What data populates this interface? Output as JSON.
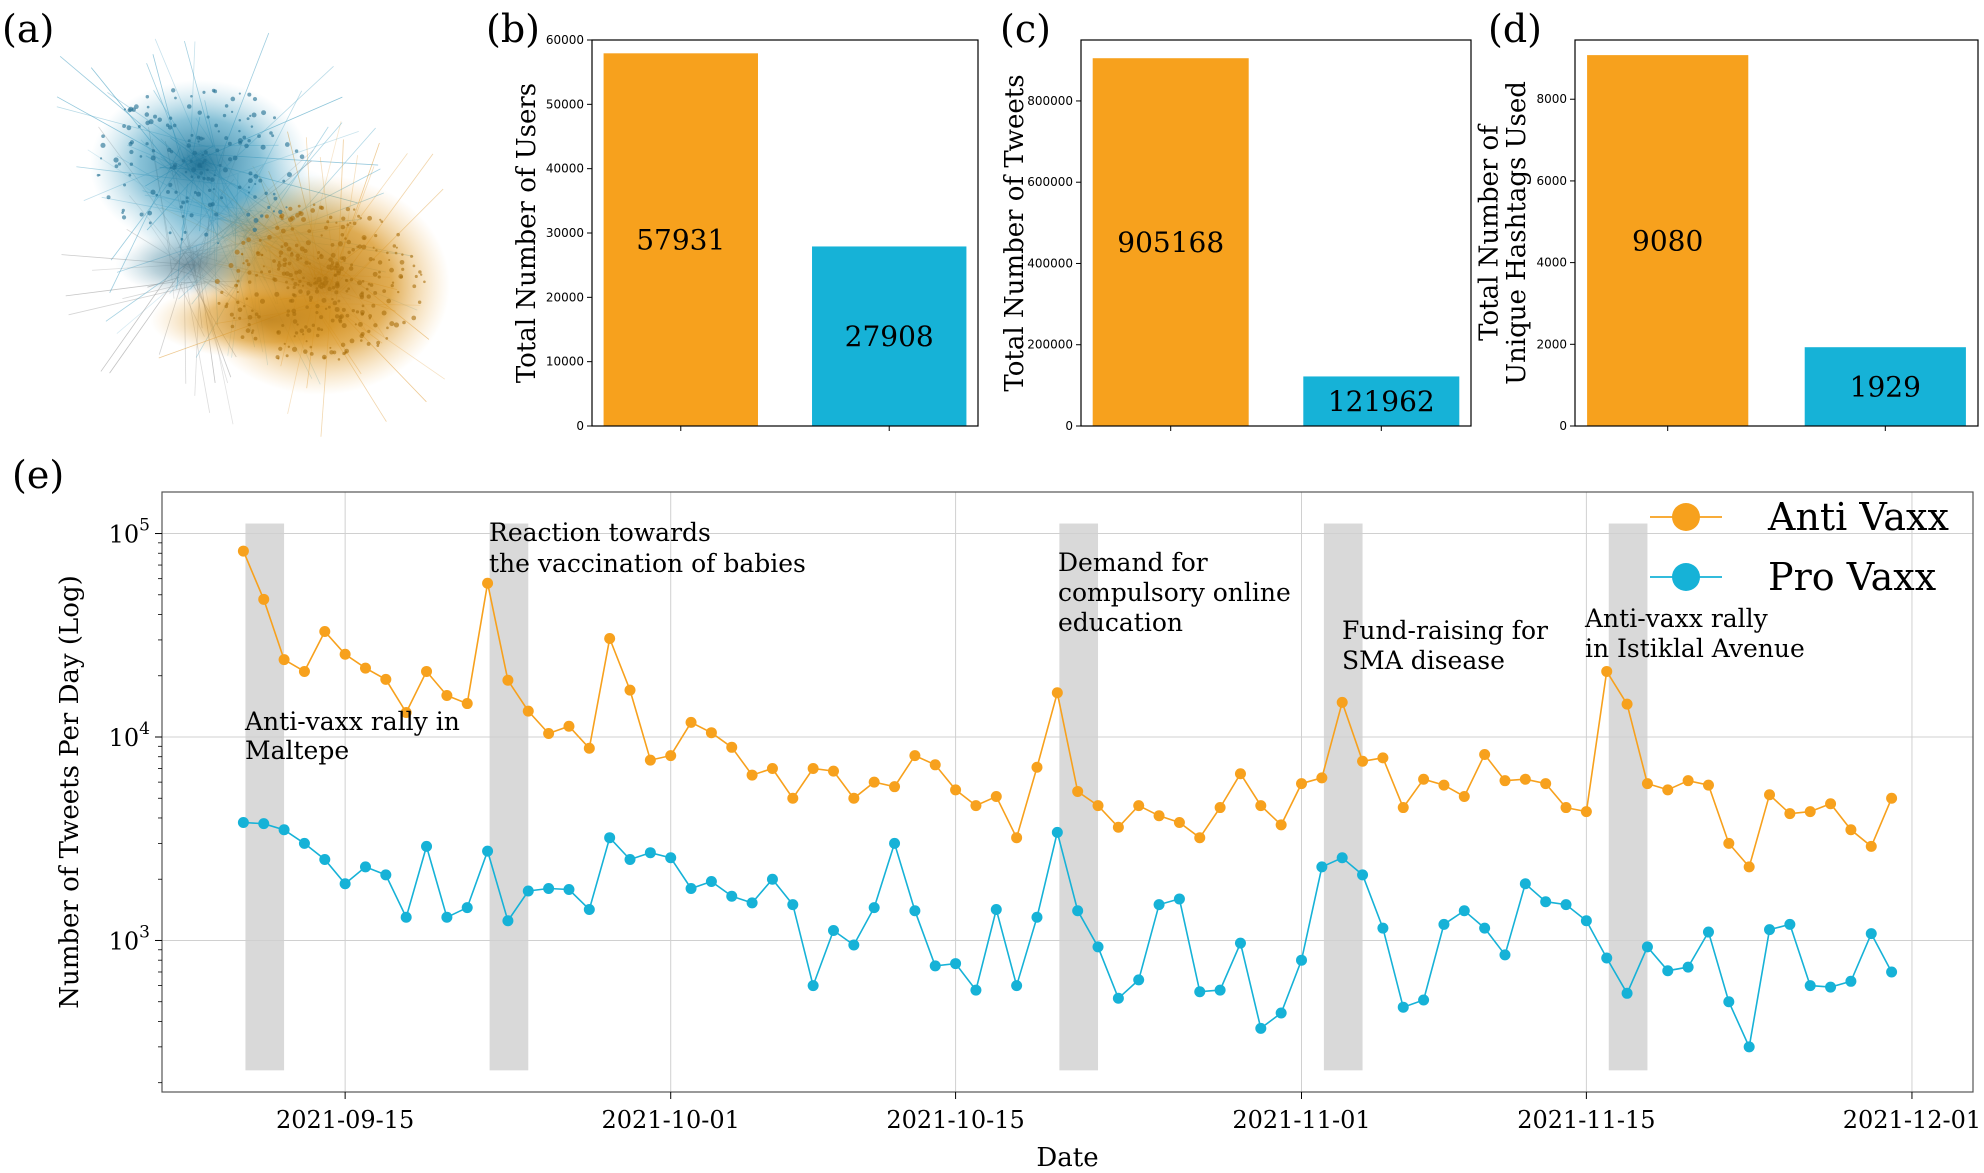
{
  "panel_labels": [
    "(a)",
    "(b)",
    "(c)",
    "(d)",
    "(e)"
  ],
  "colors": {
    "anti": "#f7a11d",
    "pro": "#16b2d7",
    "highlight": "#d9d9d9",
    "grid": "#d0d0d0"
  },
  "chart_data": [
    {
      "panel": "(b)",
      "type": "bar",
      "ylabel": "Total Number of Users",
      "values": [
        57931,
        27908
      ],
      "value_labels": [
        "57931",
        "27908"
      ],
      "ylim": [
        0,
        60000
      ],
      "yticks": [
        0,
        10000,
        20000,
        30000,
        40000,
        50000,
        60000
      ],
      "ytick_labels": [
        "0",
        "10000",
        "20000",
        "30000",
        "40000",
        "50000",
        "60000"
      ]
    },
    {
      "panel": "(c)",
      "type": "bar",
      "ylabel": "Total Number of Tweets",
      "values": [
        905168,
        121962
      ],
      "value_labels": [
        "905168",
        "121962"
      ],
      "ylim": [
        0,
        950000
      ],
      "yticks": [
        0,
        200000,
        400000,
        600000,
        800000
      ],
      "ytick_labels": [
        "0",
        "200000",
        "400000",
        "600000",
        "800000"
      ]
    },
    {
      "panel": "(d)",
      "type": "bar",
      "ylabel_lines": [
        "Total Number of",
        "Unique Hashtags Used"
      ],
      "values": [
        9080,
        1929
      ],
      "value_labels": [
        "9080",
        "1929"
      ],
      "ylim": [
        0,
        9450
      ],
      "yticks": [
        0,
        2000,
        4000,
        6000,
        8000
      ],
      "ytick_labels": [
        "0",
        "2000",
        "4000",
        "6000",
        "8000"
      ]
    },
    {
      "panel": "(e)",
      "type": "line",
      "xlabel": "Date",
      "ylabel": "Number of Tweets Per Day (Log)",
      "yscale": "log",
      "ylim": [
        180,
        160000
      ],
      "xlim": [
        "2021-09-06",
        "2021-12-04"
      ],
      "xticks": [
        "2021-09-15",
        "2021-10-01",
        "2021-10-15",
        "2021-11-01",
        "2021-11-15",
        "2021-12-01"
      ],
      "yticks": [
        1000,
        10000,
        100000
      ],
      "ytick_bases": [
        "10",
        "10",
        "10"
      ],
      "ytick_exps": [
        "3",
        "4",
        "5"
      ],
      "grid": true,
      "legend": "top-right",
      "x_start": "2021-09-10",
      "series": [
        {
          "name": "Anti Vaxx",
          "values": [
            82000,
            47500,
            24000,
            21000,
            33000,
            25500,
            21800,
            19200,
            13200,
            21000,
            16000,
            14600,
            57000,
            19000,
            13400,
            10400,
            11300,
            8800,
            30500,
            17000,
            7700,
            8100,
            11800,
            10500,
            8900,
            6500,
            7000,
            5000,
            7000,
            6800,
            5000,
            6000,
            5700,
            8100,
            7300,
            5500,
            4600,
            5100,
            3200,
            7100,
            16500,
            5400,
            4600,
            3600,
            4600,
            4100,
            3800,
            3200,
            4500,
            6600,
            4600,
            3700,
            5900,
            6300,
            14800,
            7600,
            7900,
            4500,
            6200,
            5800,
            5100,
            8200,
            6100,
            6200,
            5900,
            4500,
            4300,
            21000,
            14500,
            5900,
            5500,
            6100,
            5800,
            3000,
            2300,
            5200,
            4200,
            4300,
            4700,
            3500,
            2900,
            5000
          ]
        },
        {
          "name": "Pro Vaxx",
          "values": [
            3800,
            3750,
            3500,
            3000,
            2500,
            1900,
            2300,
            2100,
            1300,
            2900,
            1300,
            1450,
            2750,
            1250,
            1750,
            1800,
            1780,
            1420,
            3200,
            2500,
            2700,
            2550,
            1800,
            1950,
            1650,
            1530,
            2000,
            1500,
            600,
            1120,
            950,
            1450,
            3000,
            1400,
            750,
            770,
            570,
            1420,
            600,
            1300,
            3400,
            1400,
            930,
            520,
            640,
            1500,
            1600,
            560,
            570,
            970,
            370,
            440,
            800,
            2300,
            2550,
            2100,
            1150,
            470,
            510,
            1200,
            1400,
            1150,
            850,
            1900,
            1550,
            1500,
            1250,
            820,
            550,
            930,
            710,
            740,
            1100,
            500,
            300,
            1130,
            1200,
            600,
            590,
            630,
            1080,
            700
          ]
        }
      ],
      "highlight_dates": [
        "2021-09-11",
        "2021-09-23",
        "2021-10-21",
        "2021-11-03",
        "2021-11-17"
      ],
      "annotations": [
        {
          "lines": [
            "Anti-vaxx rally in",
            "Maltepe"
          ]
        },
        {
          "lines": [
            "Reaction towards",
            "the vaccination of babies"
          ]
        },
        {
          "lines": [
            "Demand for",
            "compulsory online",
            "education"
          ]
        },
        {
          "lines": [
            "Fund-raising for",
            "SMA disease"
          ]
        },
        {
          "lines": [
            "Anti-vaxx rally",
            "in Istiklal Avenue"
          ]
        }
      ]
    }
  ]
}
